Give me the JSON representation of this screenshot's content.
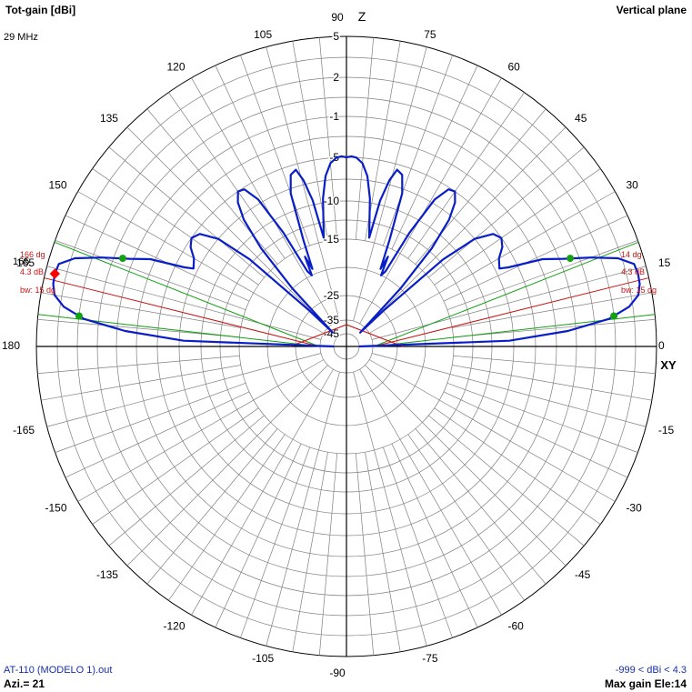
{
  "header": {
    "title_left": "Tot-gain [dBi]",
    "frequency": "29 MHz",
    "title_right": "Vertical plane"
  },
  "footer": {
    "filename": "AT-110 (MODELO 1).out",
    "azimuth": "Azi.= 21",
    "range": "-999 < dBi < 4.3",
    "max_gain": "Max gain Ele:14"
  },
  "colors": {
    "pattern": "#0a1ec8",
    "grid": "#808080",
    "axis": "#000000",
    "beamwidth_lines": "#13a013",
    "max_gain_lines": "#c81414",
    "max_marker": "#ff0000",
    "half_power_markers": "#13a013"
  },
  "chart_data": {
    "type": "polar",
    "angle_unit": "deg",
    "angle_ticks": [
      0,
      15,
      30,
      45,
      60,
      75,
      90,
      105,
      120,
      135,
      150,
      165,
      180,
      -165,
      -150,
      -135,
      -120,
      -105,
      -90,
      -75,
      -60,
      -45,
      -30,
      -15
    ],
    "radial_labels": [
      "5",
      "2",
      "-1",
      "-5",
      "-10",
      "-15",
      "-25",
      "-35",
      "-45"
    ],
    "radial_label_values": [
      5,
      2,
      -1,
      -5,
      -10,
      -15,
      -25,
      -35,
      -45
    ],
    "axis_labels": {
      "top": "Z",
      "right": "XY"
    },
    "series": [
      {
        "angles": [
          0,
          2,
          4,
          6,
          8,
          10,
          12,
          14,
          16,
          18,
          20,
          22,
          24,
          26,
          27,
          30,
          32.5,
          35,
          37.5,
          40,
          42,
          44,
          45.5,
          47,
          49,
          51,
          53,
          55,
          57,
          59,
          61,
          62.5,
          64,
          65.2,
          66.3,
          68,
          70,
          72,
          74,
          75.5,
          77,
          78.2,
          79.5,
          81,
          83,
          85,
          87,
          88.5,
          90
        ],
        "gains_dbi": [
          -45,
          -8,
          -1.8,
          1.6,
          3.2,
          4.0,
          4.25,
          4.3,
          4.2,
          3.2,
          1.3,
          -0.7,
          -2.5,
          -6,
          -7,
          -6.5,
          -5.5,
          -5.0,
          -5.5,
          -7.5,
          -12,
          -25,
          -40,
          -20,
          -12,
          -8,
          -6,
          -5,
          -5.2,
          -7,
          -12,
          -19,
          -20,
          -16.5,
          -19,
          -14,
          -8,
          -6,
          -5.6,
          -7,
          -9.5,
          -14.5,
          -12.5,
          -9.5,
          -7,
          -5.6,
          -5,
          -4.9,
          -5
        ]
      }
    ],
    "symmetry": "mirrored about vertical axis",
    "max_gain": {
      "angle": 14,
      "value": 4.3,
      "supplement_angle": 166
    },
    "beamwidth": 15,
    "half_power_angles": [
      6.5,
      21.5
    ],
    "annotations": {
      "right": [
        "14 dg",
        "4.3 dB",
        "bw: 15 dg"
      ],
      "left": [
        "166 dg",
        "4.3 dB",
        "bw: 15 dg"
      ],
      "left_overlay": "165"
    }
  }
}
